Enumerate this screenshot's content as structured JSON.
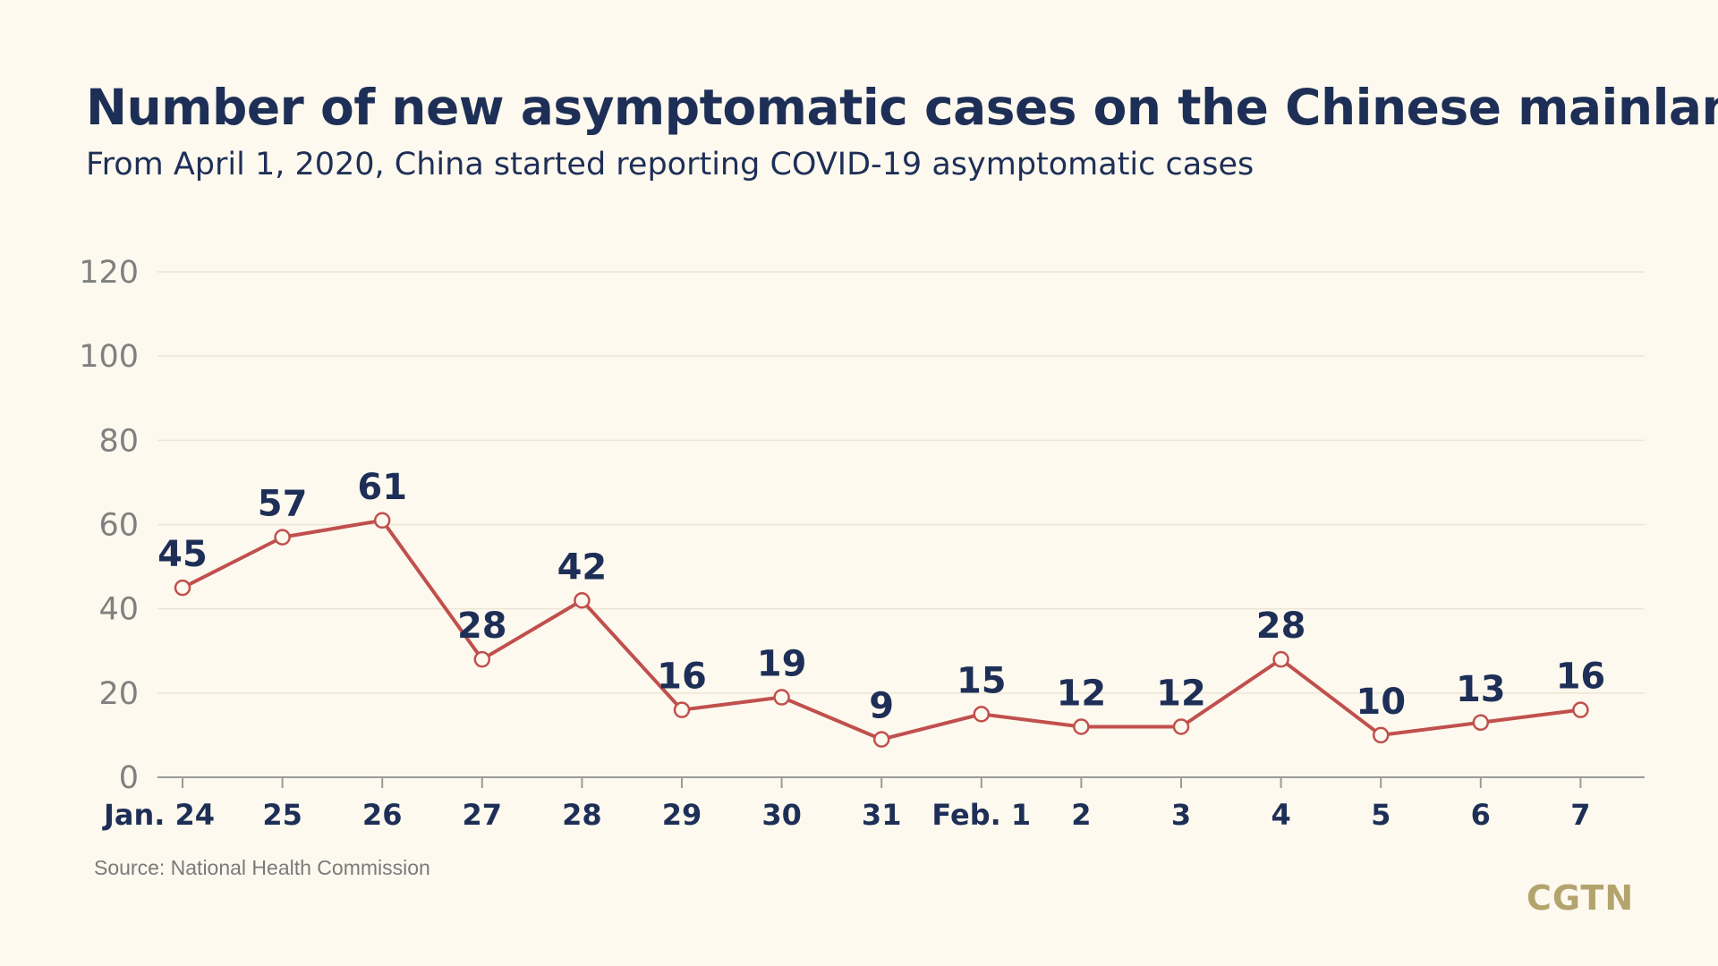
{
  "header": {
    "title": "Number of new asymptomatic cases on the Chinese mainland",
    "subtitle": "From April 1, 2020, China started reporting COVID-19 asymptomatic cases"
  },
  "footer": {
    "source": "Source: National Health Commission",
    "logo": "CGTN"
  },
  "colors": {
    "line": "#c0504d",
    "marker_fill": "#fdf9ee",
    "text_dark": "#1e2f57",
    "axis_text": "#808080",
    "grid": "#ece6d6",
    "logo": "#b3a36d"
  },
  "chart_data": {
    "type": "line",
    "categories": [
      "Jan. 24",
      "25",
      "26",
      "27",
      "28",
      "29",
      "30",
      "31",
      "Feb. 1",
      "2",
      "3",
      "4",
      "5",
      "6",
      "7"
    ],
    "series": [
      {
        "values": [
          45,
          57,
          61,
          28,
          42,
          16,
          19,
          9,
          15,
          12,
          12,
          28,
          10,
          13,
          16
        ],
        "labels": [
          "45",
          "57",
          "61",
          "28",
          "42",
          "16",
          "19",
          "9",
          "15",
          "12",
          "12",
          "28",
          "10",
          "13",
          "16"
        ]
      }
    ],
    "yticks": [
      "0",
      "20",
      "40",
      "60",
      "80",
      "100",
      "120"
    ],
    "ylim": [
      0,
      120
    ],
    "grid": true,
    "legend": "none"
  }
}
